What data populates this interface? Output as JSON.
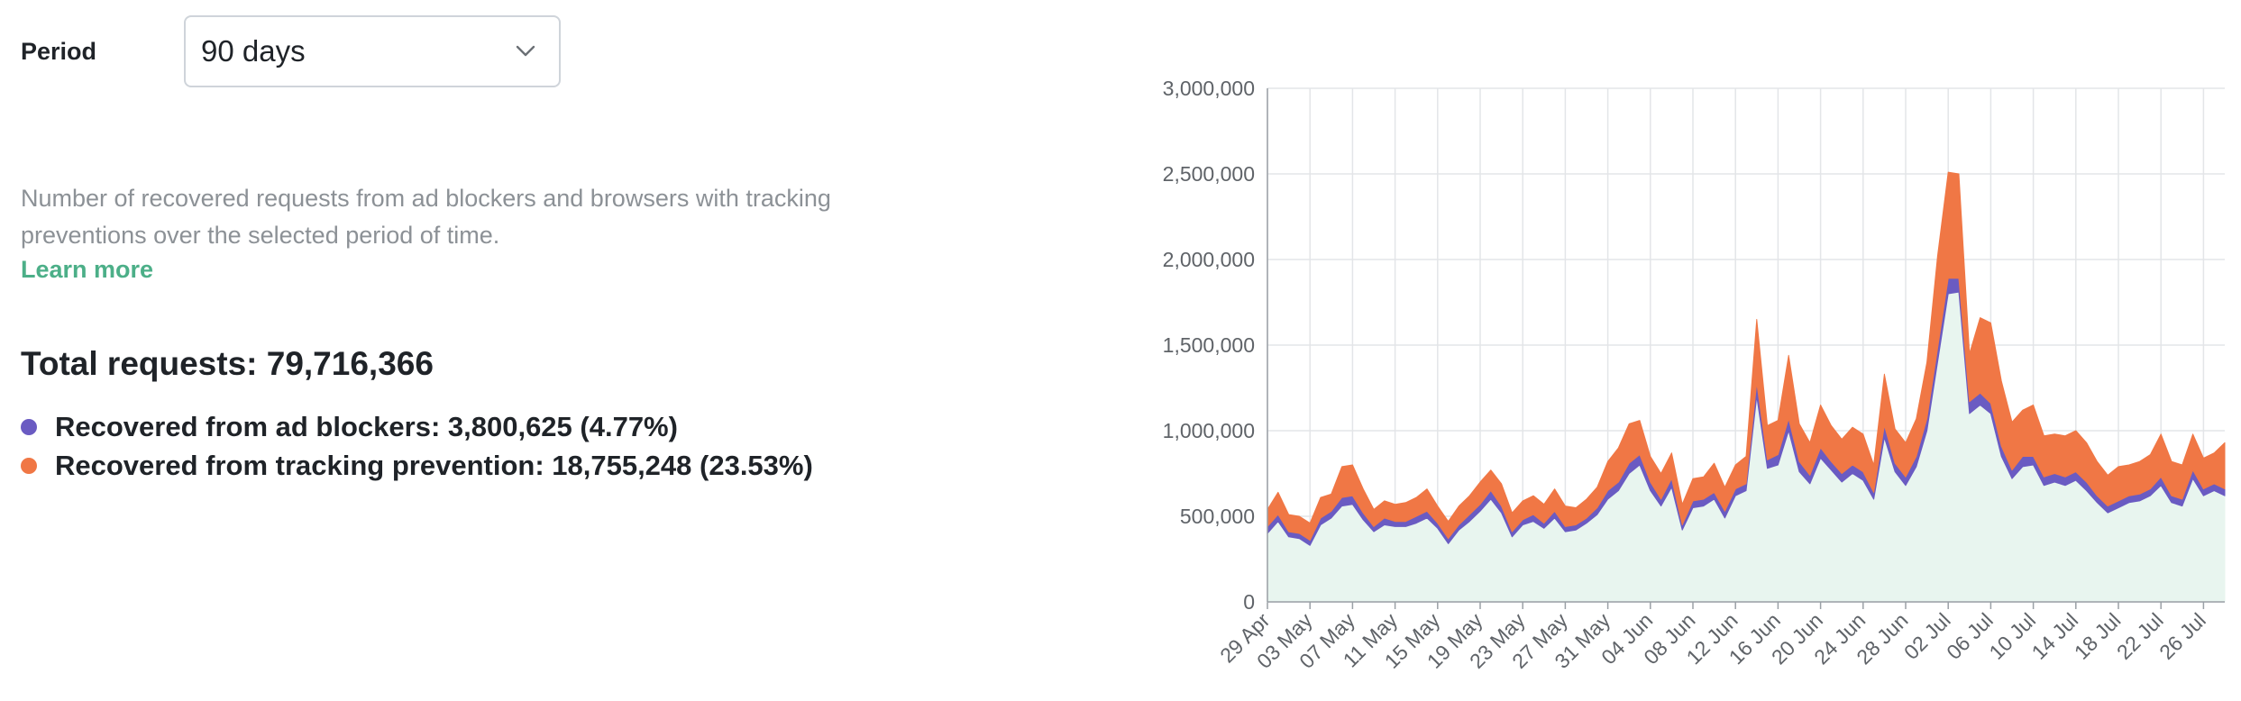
{
  "controls": {
    "period_label": "Period",
    "period_value": "90 days",
    "chevron_icon": "chevron-down-icon"
  },
  "info": {
    "description": "Number of recovered requests from ad blockers and browsers with tracking preventions over the selected period of time.",
    "learn_more": "Learn more"
  },
  "summary": {
    "total": "Total requests: 79,716,366",
    "ad_blockers": "Recovered from ad blockers: 3,800,625 (4.77%)",
    "tracking_prevention": "Recovered from tracking prevention: 18,755,248 (23.53%)"
  },
  "colors": {
    "ad_blockers": "#6a5bc2",
    "tracking_prevention": "#f07745",
    "other": "#e8f5ef",
    "accent": "#4caf88"
  },
  "chart_data": {
    "type": "area",
    "stacked": true,
    "ylim": [
      0,
      3000000
    ],
    "yticks": [
      0,
      500000,
      1000000,
      1500000,
      2000000,
      2500000,
      3000000
    ],
    "ytick_labels": [
      "0",
      "500,000",
      "1,000,000",
      "1,500,000",
      "2,000,000",
      "2,500,000",
      "3,000,000"
    ],
    "x_labels": [
      "29 Apr",
      "03 May",
      "07 May",
      "11 May",
      "15 May",
      "19 May",
      "23 May",
      "27 May",
      "31 May",
      "04 Jun",
      "08 Jun",
      "12 Jun",
      "16 Jun",
      "20 Jun",
      "24 Jun",
      "28 Jun",
      "02 Jul",
      "06 Jul",
      "10 Jul",
      "14 Jul",
      "18 Jul",
      "22 Jul",
      "26 Jul"
    ],
    "label_every_days": 4,
    "grid": true,
    "legend": "none",
    "series": [
      {
        "key": "other",
        "values": [
          400000,
          470000,
          380000,
          370000,
          330000,
          450000,
          490000,
          560000,
          570000,
          480000,
          410000,
          450000,
          440000,
          440000,
          460000,
          490000,
          430000,
          340000,
          420000,
          470000,
          530000,
          600000,
          520000,
          380000,
          450000,
          470000,
          430000,
          490000,
          410000,
          420000,
          460000,
          510000,
          600000,
          650000,
          750000,
          800000,
          650000,
          560000,
          670000,
          420000,
          550000,
          560000,
          600000,
          490000,
          620000,
          650000,
          1200000,
          780000,
          800000,
          1000000,
          760000,
          690000,
          840000,
          770000,
          700000,
          750000,
          710000,
          600000,
          960000,
          760000,
          680000,
          790000,
          1000000,
          1400000,
          1800000,
          1810000,
          1100000,
          1150000,
          1100000,
          850000,
          720000,
          790000,
          800000,
          680000,
          700000,
          680000,
          710000,
          650000,
          580000,
          520000,
          550000,
          580000,
          590000,
          620000,
          680000,
          580000,
          560000,
          720000,
          620000,
          650000,
          620000
        ],
        "name": ""
      },
      {
        "key": "ad_blockers",
        "values": [
          40000,
          40000,
          30000,
          30000,
          30000,
          40000,
          40000,
          50000,
          50000,
          40000,
          30000,
          40000,
          30000,
          30000,
          40000,
          40000,
          30000,
          30000,
          30000,
          40000,
          40000,
          50000,
          40000,
          30000,
          30000,
          40000,
          30000,
          40000,
          30000,
          30000,
          30000,
          40000,
          50000,
          50000,
          60000,
          60000,
          50000,
          40000,
          50000,
          30000,
          40000,
          40000,
          40000,
          40000,
          40000,
          40000,
          80000,
          50000,
          60000,
          70000,
          60000,
          50000,
          60000,
          50000,
          50000,
          50000,
          50000,
          40000,
          70000,
          50000,
          50000,
          60000,
          70000,
          80000,
          90000,
          80000,
          70000,
          70000,
          60000,
          60000,
          50000,
          60000,
          50000,
          50000,
          50000,
          50000,
          50000,
          50000,
          40000,
          40000,
          40000,
          40000,
          40000,
          40000,
          50000,
          40000,
          40000,
          50000,
          40000,
          40000,
          40000
        ],
        "name": ""
      },
      {
        "key": "tracking_prevention",
        "values": [
          100000,
          130000,
          100000,
          100000,
          100000,
          120000,
          100000,
          180000,
          180000,
          140000,
          100000,
          100000,
          100000,
          110000,
          110000,
          130000,
          100000,
          100000,
          110000,
          110000,
          130000,
          120000,
          130000,
          110000,
          110000,
          110000,
          110000,
          130000,
          120000,
          100000,
          110000,
          120000,
          170000,
          200000,
          230000,
          200000,
          150000,
          150000,
          150000,
          120000,
          130000,
          130000,
          170000,
          140000,
          140000,
          160000,
          370000,
          200000,
          200000,
          370000,
          220000,
          190000,
          250000,
          210000,
          200000,
          220000,
          220000,
          160000,
          300000,
          200000,
          200000,
          220000,
          330000,
          540000,
          620000,
          610000,
          280000,
          440000,
          470000,
          380000,
          280000,
          270000,
          300000,
          240000,
          230000,
          240000,
          240000,
          230000,
          200000,
          180000,
          200000,
          180000,
          190000,
          200000,
          250000,
          200000,
          200000,
          210000,
          180000,
          180000,
          270000
        ],
        "name": ""
      }
    ]
  }
}
